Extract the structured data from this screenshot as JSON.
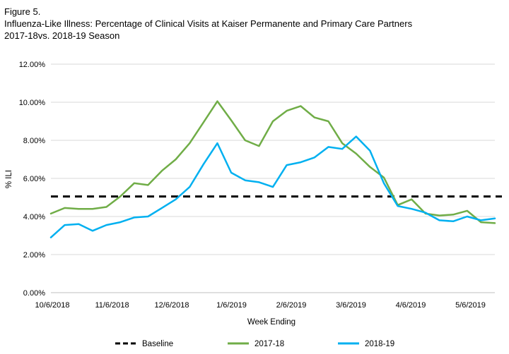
{
  "figure": {
    "label": "Figure 5.",
    "title_line1": "Influenza-Like Illness: Percentage of Clinical Visits at Kaiser Permanente and Primary Care Partners",
    "title_line2": "2017-18vs. 2018-19 Season"
  },
  "chart_data": {
    "type": "line",
    "title": "Influenza-Like Illness: Percentage of Clinical Visits at Kaiser Permanente and Primary Care Partners 2017-18vs. 2018-19 Season",
    "xlabel": "Week Ending",
    "ylabel": "% ILI",
    "ylim": [
      0,
      12
    ],
    "yticks": [
      "0.00%",
      "2.00%",
      "4.00%",
      "6.00%",
      "8.00%",
      "10.00%",
      "12.00%"
    ],
    "xticks": [
      "10/6/2018",
      "11/6/2018",
      "12/6/2018",
      "1/6/2019",
      "2/6/2019",
      "3/6/2019",
      "4/6/2019",
      "5/6/2019"
    ],
    "grid": "horizontal",
    "legend_position": "bottom",
    "series": [
      {
        "name": "Baseline",
        "color": "#000000",
        "style": "dashed",
        "values": [
          5.05,
          5.05
        ]
      },
      {
        "name": "2017-18",
        "color": "#70ad47",
        "style": "solid",
        "values": [
          4.15,
          4.45,
          4.4,
          4.4,
          4.5,
          5.05,
          5.75,
          5.65,
          6.4,
          7.0,
          7.85,
          8.95,
          10.05,
          9.05,
          8.0,
          7.7,
          9.0,
          9.55,
          9.8,
          9.2,
          9.0,
          7.85,
          7.3,
          6.6,
          6.05,
          4.6,
          4.9,
          4.15,
          4.05,
          4.1,
          4.3,
          3.7,
          3.65
        ]
      },
      {
        "name": "2018-19",
        "color": "#00b0f0",
        "style": "solid",
        "values": [
          2.9,
          3.55,
          3.6,
          3.25,
          3.55,
          3.7,
          3.95,
          4.0,
          4.45,
          4.9,
          5.55,
          6.75,
          7.85,
          6.3,
          5.9,
          5.8,
          5.55,
          6.7,
          6.85,
          7.1,
          7.65,
          7.55,
          8.2,
          7.45,
          5.75,
          4.55,
          4.4,
          4.2,
          3.8,
          3.75,
          4.0,
          3.8,
          3.9
        ]
      }
    ]
  },
  "colors": {
    "series_2017_18": "#70ad47",
    "series_2018_19": "#00b0f0",
    "baseline": "#000000",
    "grid": "#d9d9d9"
  }
}
